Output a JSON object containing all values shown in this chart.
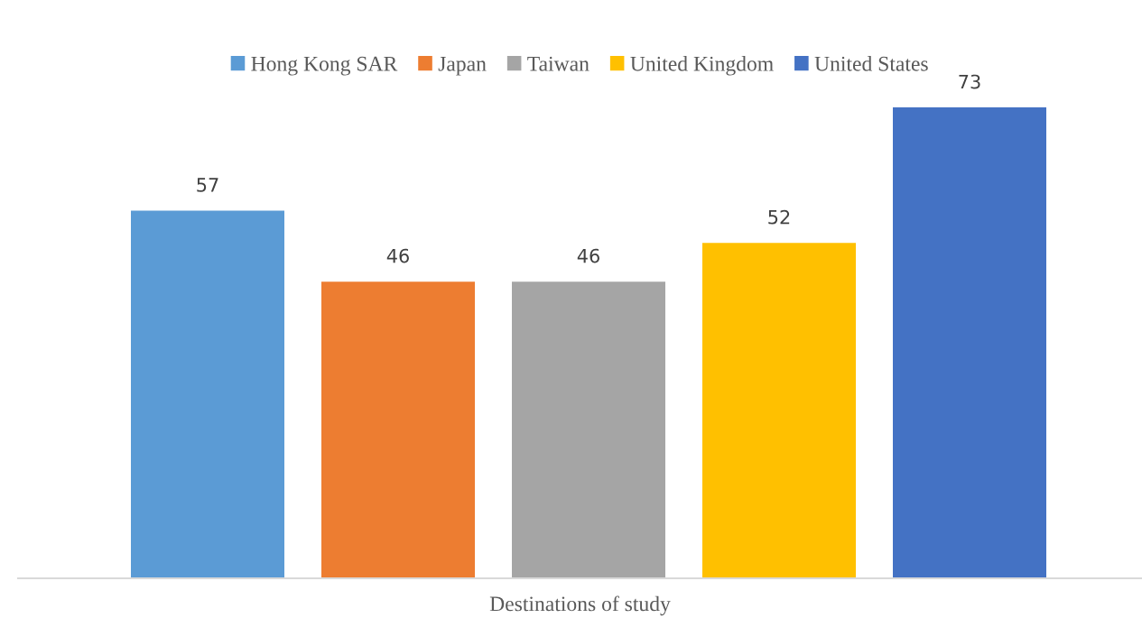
{
  "chart_data": {
    "type": "bar",
    "xlabel": "Destinations of study",
    "categories": [
      null
    ],
    "series": [
      {
        "name": "Hong Kong SAR",
        "color": "#5b9bd5",
        "values": [
          57
        ]
      },
      {
        "name": "Japan",
        "color": "#ed7d31",
        "values": [
          46
        ]
      },
      {
        "name": "Taiwan",
        "color": "#a5a5a5",
        "values": [
          46
        ]
      },
      {
        "name": "United Kingdom",
        "color": "#ffc000",
        "values": [
          52
        ]
      },
      {
        "name": "United States",
        "color": "#4472c4",
        "values": [
          73
        ]
      }
    ],
    "data_labels": true,
    "grid": false,
    "legend": "top",
    "tick_labels": false
  }
}
